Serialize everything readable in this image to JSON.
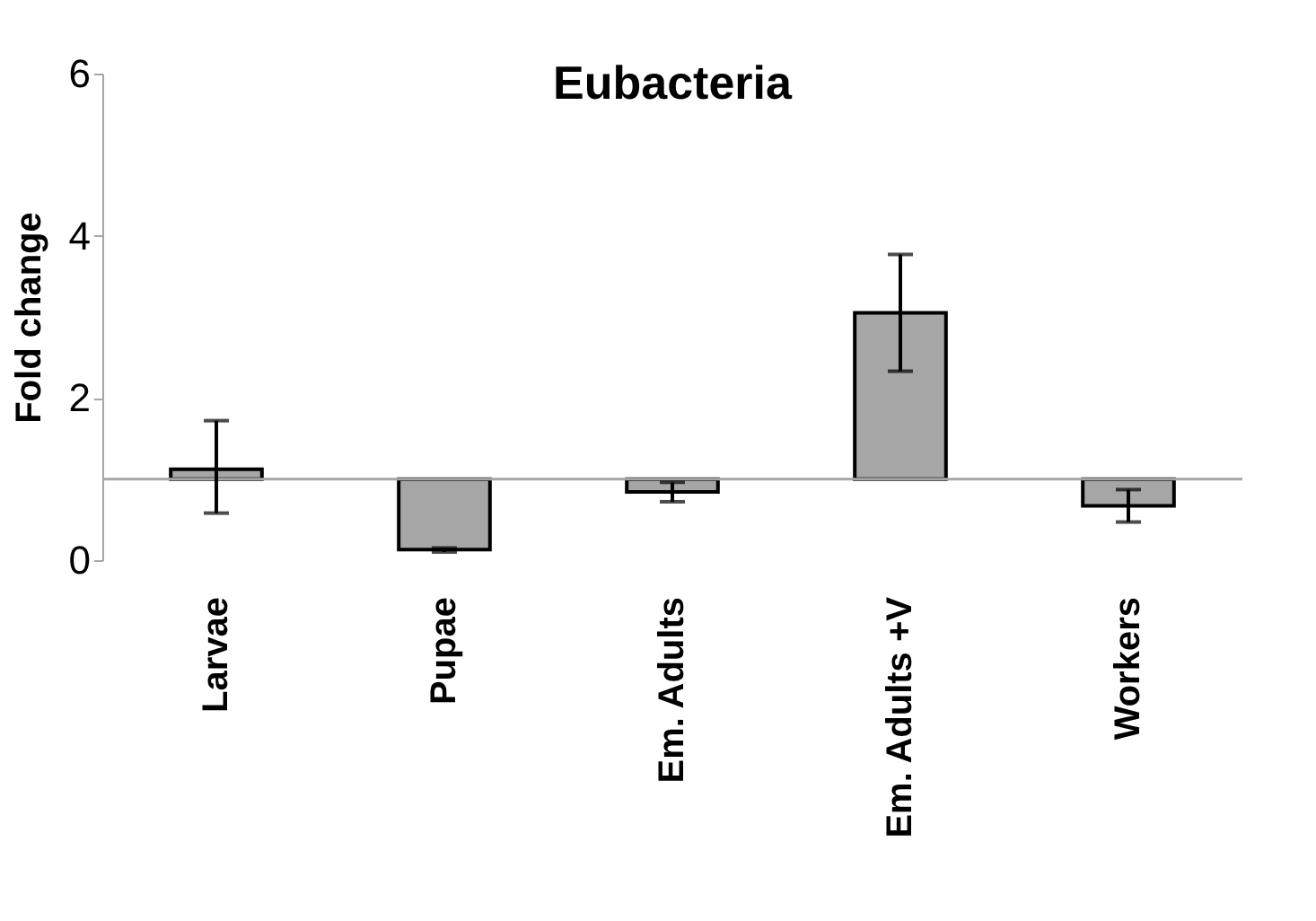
{
  "chart_data": {
    "type": "bar",
    "title": "Eubacteria",
    "ylabel": "Fold change",
    "categories": [
      "Larvae",
      "Pupae",
      "Em. Adults",
      "Em. Adults +V",
      "Workers"
    ],
    "base": [
      1,
      1,
      1,
      1,
      1
    ],
    "values": [
      0.12,
      -0.87,
      -0.16,
      2.05,
      -0.33
    ],
    "errors": [
      [
        0.58,
        1.72
      ],
      [
        0.1,
        0.15
      ],
      [
        0.72,
        0.96
      ],
      [
        2.33,
        3.77
      ],
      [
        0.47,
        0.87
      ]
    ],
    "color": "#a6a6a6",
    "ylim": [
      0,
      6
    ],
    "yticks": [
      0,
      2,
      4,
      6
    ],
    "ref_lines": [
      {
        "axis": "y",
        "value": 1,
        "color": "#a6a6a6"
      }
    ],
    "grid": false
  }
}
